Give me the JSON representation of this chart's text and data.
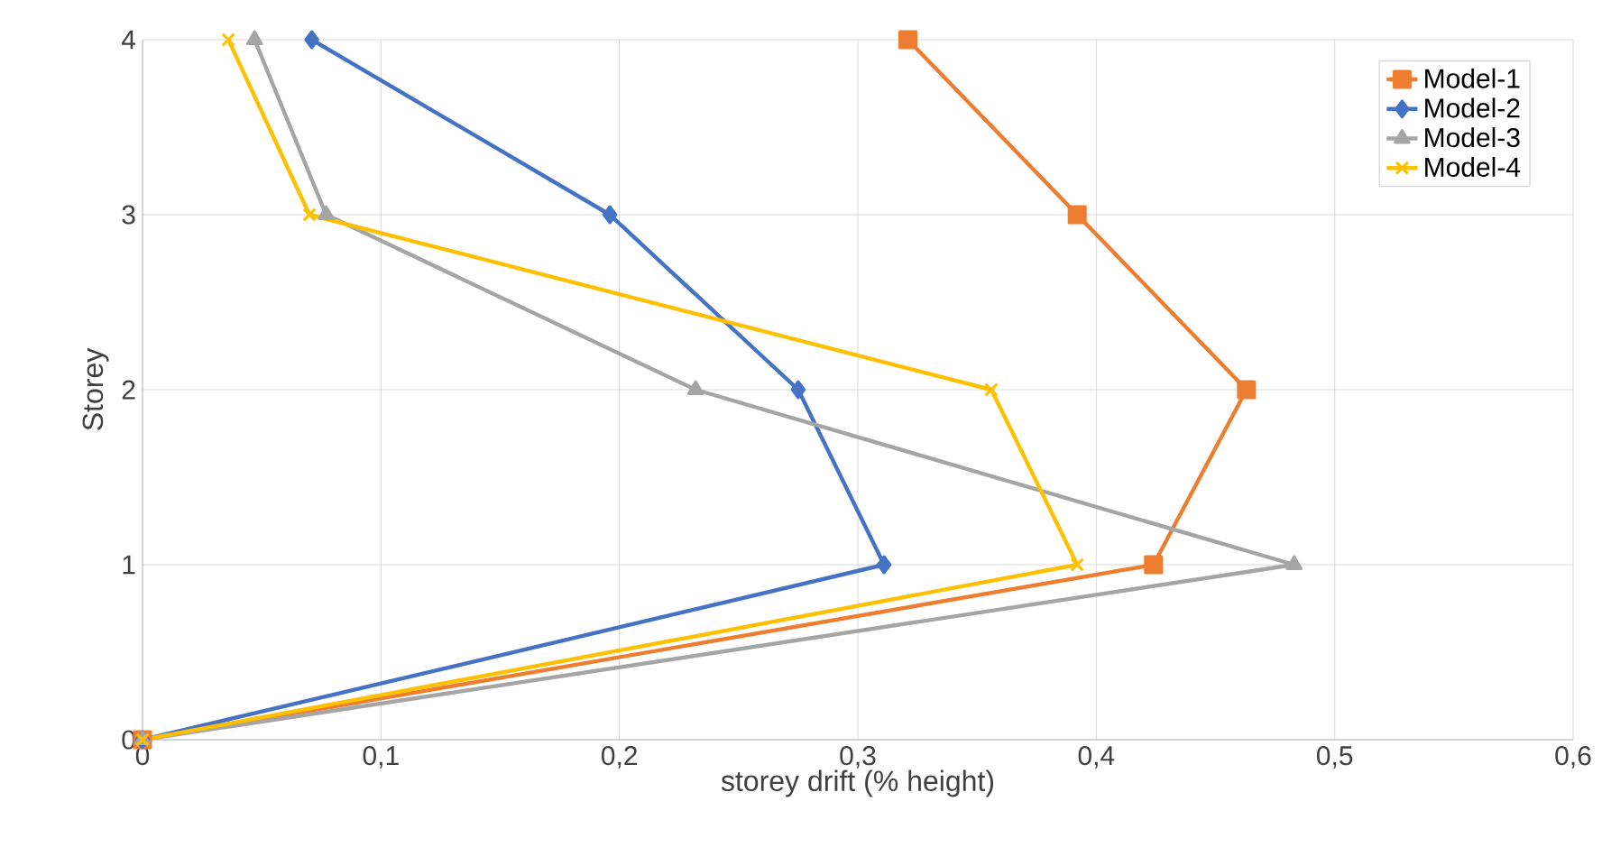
{
  "chart_data": {
    "type": "line",
    "xlabel": "storey drift (% height)",
    "ylabel": "Storey",
    "xlim": [
      0,
      0.6
    ],
    "ylim": [
      0,
      4
    ],
    "xticks": [
      0,
      {
        "value": 0.1,
        "label": "0,1"
      },
      {
        "value": 0.2,
        "label": "0,2"
      },
      {
        "value": 0.3,
        "label": "0,3"
      },
      {
        "value": 0.4,
        "label": "0,4"
      },
      {
        "value": 0.5,
        "label": "0,5"
      },
      {
        "value": 0.6,
        "label": "0,6"
      }
    ],
    "yticks": [
      0,
      1,
      2,
      3,
      4
    ],
    "grid": true,
    "legend": "top right",
    "line_style": "solid",
    "series": [
      {
        "name": "Model-1",
        "color": "#ed7d31",
        "marker": "square",
        "x": [
          0,
          0.424,
          0.463,
          0.392,
          0.321
        ],
        "values": [
          0,
          1,
          2,
          3,
          4
        ]
      },
      {
        "name": "Model-2",
        "color": "#4472c4",
        "marker": "diamond",
        "x": [
          0,
          0.311,
          0.275,
          0.196,
          0.071
        ],
        "values": [
          0,
          1,
          2,
          3,
          4
        ]
      },
      {
        "name": "Model-3",
        "color": "#a5a5a5",
        "marker": "triangle",
        "x": [
          0,
          0.483,
          0.232,
          0.077,
          0.047
        ],
        "values": [
          0,
          1,
          2,
          3,
          4
        ]
      },
      {
        "name": "Model-4",
        "color": "#ffc000",
        "marker": "cross",
        "x": [
          0,
          0.392,
          0.356,
          0.07,
          0.036
        ],
        "values": [
          0,
          1,
          2,
          3,
          4
        ]
      }
    ]
  }
}
